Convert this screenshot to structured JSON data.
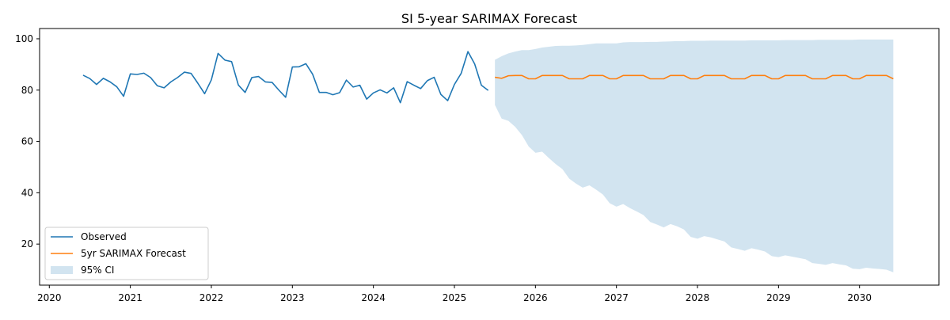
{
  "chart_data": {
    "type": "line",
    "title": "SI 5-year SARIMAX Forecast",
    "xlabel": "",
    "ylabel": "",
    "xlim": [
      2019.88,
      2030.98
    ],
    "ylim": [
      4.0,
      104.0
    ],
    "x_ticks": [
      2020,
      2021,
      2022,
      2023,
      2024,
      2025,
      2026,
      2027,
      2028,
      2029,
      2030
    ],
    "x_tick_labels": [
      "2020",
      "2021",
      "2022",
      "2023",
      "2024",
      "2025",
      "2026",
      "2027",
      "2028",
      "2029",
      "2030"
    ],
    "y_ticks": [
      20,
      40,
      60,
      80,
      100
    ],
    "y_tick_labels": [
      "20",
      "40",
      "60",
      "80",
      "100"
    ],
    "grid": false,
    "legend_position": "lower-left",
    "colors": {
      "observed": "#1f77b4",
      "forecast": "#ff7f0e",
      "ci": "#1f77b4"
    },
    "legend": [
      {
        "key": "observed",
        "label": "Observed",
        "kind": "line"
      },
      {
        "key": "forecast",
        "label": "5yr SARIMAX Forecast",
        "kind": "line"
      },
      {
        "key": "ci",
        "label": "95% CI",
        "kind": "patch"
      }
    ],
    "observed": {
      "x": [
        2020.417,
        2020.5,
        2020.583,
        2020.667,
        2020.75,
        2020.833,
        2020.917,
        2021.0,
        2021.083,
        2021.167,
        2021.25,
        2021.333,
        2021.417,
        2021.5,
        2021.583,
        2021.667,
        2021.75,
        2021.833,
        2021.917,
        2022.0,
        2022.083,
        2022.167,
        2022.25,
        2022.333,
        2022.417,
        2022.5,
        2022.583,
        2022.667,
        2022.75,
        2022.833,
        2022.917,
        2023.0,
        2023.083,
        2023.167,
        2023.25,
        2023.333,
        2023.417,
        2023.5,
        2023.583,
        2023.667,
        2023.75,
        2023.833,
        2023.917,
        2024.0,
        2024.083,
        2024.167,
        2024.25,
        2024.333,
        2024.417,
        2024.5,
        2024.583,
        2024.667,
        2024.75,
        2024.833,
        2024.917,
        2025.0,
        2025.083,
        2025.167,
        2025.25,
        2025.333,
        2025.417
      ],
      "y": [
        85.8,
        84.5,
        82.2,
        84.6,
        83.2,
        81.3,
        77.6,
        86.3,
        86.1,
        86.6,
        84.9,
        81.7,
        80.9,
        83.2,
        84.9,
        87.0,
        86.5,
        82.7,
        78.6,
        84.0,
        94.3,
        91.7,
        91.1,
        82.0,
        79.1,
        84.9,
        85.3,
        83.2,
        83.0,
        80.0,
        77.2,
        89.0,
        89.1,
        90.3,
        86.2,
        79.1,
        79.1,
        78.2,
        79.0,
        83.9,
        81.2,
        81.9,
        76.5,
        78.9,
        80.1,
        78.9,
        80.9,
        75.1,
        83.3,
        81.9,
        80.6,
        83.7,
        85.0,
        78.3,
        75.9,
        82.2,
        86.5,
        95.0,
        90.2,
        81.9,
        79.9
      ]
    },
    "forecast": {
      "x": [
        2025.5,
        2025.583,
        2025.667,
        2025.75,
        2025.833,
        2025.917,
        2026.0,
        2026.083,
        2026.167,
        2026.25,
        2026.333,
        2026.417,
        2026.5,
        2026.583,
        2026.667,
        2026.75,
        2026.833,
        2026.917,
        2027.0,
        2027.083,
        2027.167,
        2027.25,
        2027.333,
        2027.417,
        2027.5,
        2027.583,
        2027.667,
        2027.75,
        2027.833,
        2027.917,
        2028.0,
        2028.083,
        2028.167,
        2028.25,
        2028.333,
        2028.417,
        2028.5,
        2028.583,
        2028.667,
        2028.75,
        2028.833,
        2028.917,
        2029.0,
        2029.083,
        2029.167,
        2029.25,
        2029.333,
        2029.417,
        2029.5,
        2029.583,
        2029.667,
        2029.75,
        2029.833,
        2029.917,
        2030.0,
        2030.083,
        2030.167,
        2030.25,
        2030.333,
        2030.417
      ],
      "y": [
        85.0,
        84.6,
        85.6,
        85.7,
        85.7,
        84.4,
        84.4,
        85.7,
        85.7,
        85.7,
        85.7,
        84.4,
        84.4,
        84.4,
        85.7,
        85.7,
        85.7,
        84.4,
        84.4,
        85.7,
        85.7,
        85.7,
        85.7,
        84.4,
        84.4,
        84.4,
        85.7,
        85.7,
        85.7,
        84.4,
        84.4,
        85.7,
        85.7,
        85.7,
        85.7,
        84.4,
        84.4,
        84.4,
        85.7,
        85.7,
        85.7,
        84.4,
        84.4,
        85.7,
        85.7,
        85.7,
        85.7,
        84.4,
        84.4,
        84.4,
        85.7,
        85.7,
        85.7,
        84.4,
        84.4,
        85.7,
        85.7,
        85.7,
        85.7,
        84.4
      ]
    },
    "ci_upper": [
      91.8,
      93.2,
      94.3,
      95.0,
      95.6,
      95.6,
      96.0,
      96.6,
      96.9,
      97.2,
      97.3,
      97.3,
      97.4,
      97.6,
      97.9,
      98.2,
      98.2,
      98.2,
      98.2,
      98.6,
      98.7,
      98.7,
      98.7,
      98.8,
      98.8,
      98.9,
      99.0,
      99.1,
      99.1,
      99.2,
      99.2,
      99.2,
      99.3,
      99.3,
      99.3,
      99.3,
      99.3,
      99.3,
      99.4,
      99.4,
      99.4,
      99.4,
      99.4,
      99.5,
      99.5,
      99.5,
      99.5,
      99.5,
      99.6,
      99.6,
      99.6,
      99.6,
      99.6,
      99.6,
      99.7,
      99.7,
      99.7,
      99.7,
      99.7,
      99.7
    ],
    "ci_lower": [
      74.2,
      68.9,
      68.0,
      65.7,
      62.5,
      58.0,
      55.6,
      56.0,
      53.5,
      51.2,
      49.2,
      45.5,
      43.6,
      42.0,
      42.9,
      41.2,
      39.3,
      35.9,
      34.6,
      35.6,
      34.0,
      32.7,
      31.3,
      28.6,
      27.6,
      26.5,
      27.8,
      26.9,
      25.7,
      22.8,
      22.1,
      23.1,
      22.6,
      21.8,
      21.0,
      18.7,
      18.1,
      17.4,
      18.4,
      17.8,
      17.1,
      15.3,
      14.9,
      15.6,
      15.1,
      14.6,
      14.1,
      12.6,
      12.3,
      11.9,
      12.6,
      12.1,
      11.7,
      10.4,
      10.2,
      10.8,
      10.5,
      10.3,
      10.0,
      9.0
    ]
  }
}
